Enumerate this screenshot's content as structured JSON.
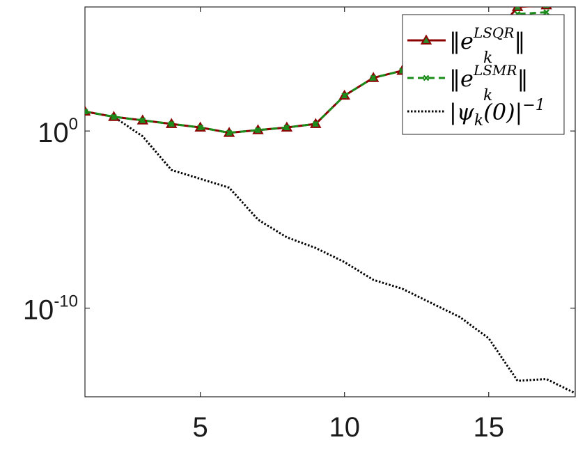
{
  "chart_data": {
    "type": "line",
    "title": "",
    "xlabel": "",
    "ylabel": "",
    "yscale": "log",
    "xlim": [
      1,
      18
    ],
    "ylim_log10": [
      -15,
      7
    ],
    "grid": false,
    "legend_placement": "top-right",
    "x_ticks": [
      5,
      10,
      15
    ],
    "y_ticks": [
      {
        "log10": 0,
        "base": "10",
        "exp": "0"
      },
      {
        "log10": -10,
        "base": "10",
        "exp": "-10"
      }
    ],
    "x": [
      1,
      2,
      3,
      4,
      5,
      6,
      7,
      8,
      9,
      10,
      11,
      12,
      13,
      14,
      15,
      16,
      17,
      18
    ],
    "series": [
      {
        "key": "lsqr",
        "color": "#8b0000",
        "marker": "triangle",
        "line": "solid",
        "log10_values": [
          1.1,
          0.8,
          0.6,
          0.4,
          0.2,
          -0.1,
          0.05,
          0.2,
          0.4,
          2.0,
          3.0,
          3.4,
          3.9,
          4.4,
          5.0,
          7.0,
          7.1,
          null
        ]
      },
      {
        "key": "lsmr",
        "color": "#1a8c1a",
        "marker": "x",
        "line": "dashed",
        "log10_values": [
          1.1,
          0.8,
          0.6,
          0.4,
          0.2,
          -0.1,
          0.05,
          0.2,
          0.4,
          2.0,
          3.0,
          3.4,
          3.9,
          4.4,
          5.0,
          6.6,
          6.7,
          null
        ]
      },
      {
        "key": "psi",
        "color": "#000000",
        "marker": "none",
        "line": "dotted",
        "log10_values": [
          1.1,
          0.8,
          -0.3,
          -2.2,
          -2.7,
          -3.2,
          -5.0,
          -6.0,
          -6.6,
          -7.4,
          -8.4,
          -8.9,
          -9.7,
          -10.5,
          -11.7,
          -14.1,
          -14.0,
          -14.8
        ]
      }
    ],
    "legend": [
      {
        "key": "lsqr",
        "base": "‖e",
        "sup": "LSQR",
        "sub": "k",
        "close": "‖"
      },
      {
        "key": "lsmr",
        "base": "‖e",
        "sup": "LSMR",
        "sub": "k",
        "close": "‖"
      },
      {
        "key": "psi",
        "base": "|ψ",
        "sub": "k",
        "mid": "(0)|",
        "sup": "−1",
        "close": ""
      }
    ]
  }
}
